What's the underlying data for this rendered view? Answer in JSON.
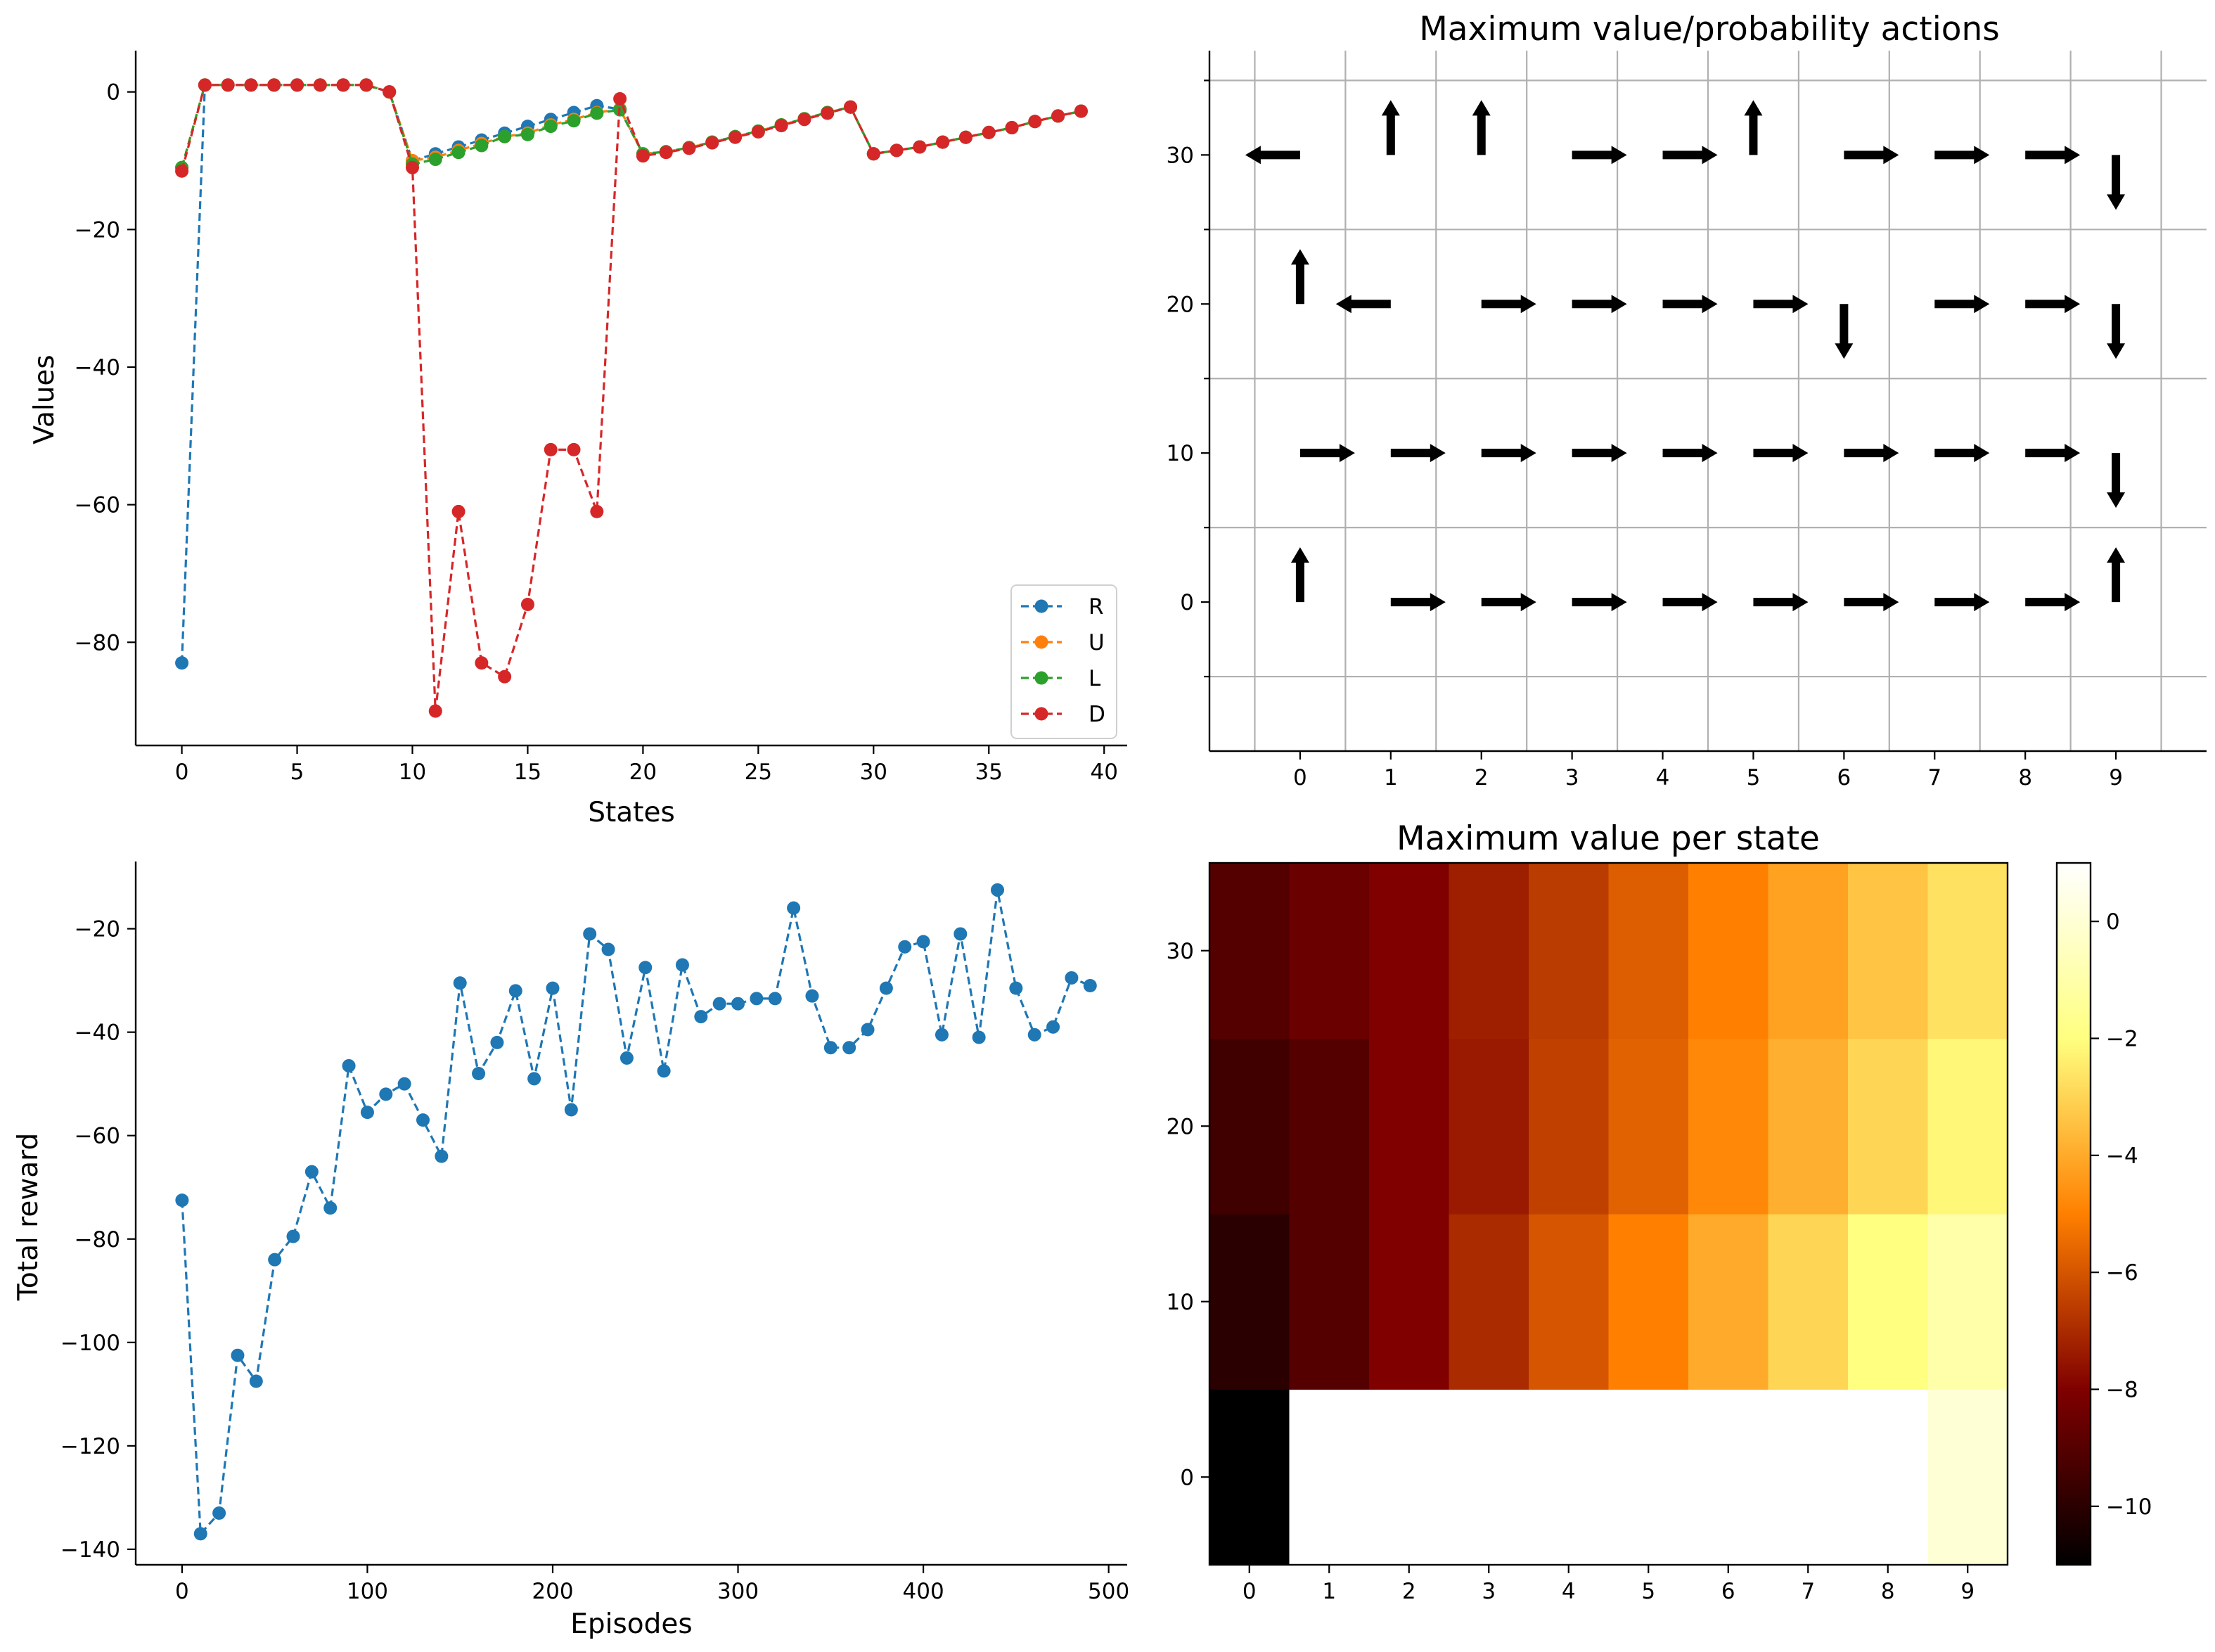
{
  "colors": {
    "R": "#1f77b4",
    "U": "#ff7f0e",
    "L": "#2ca02c",
    "D": "#d62728",
    "reward": "#1f77b4"
  },
  "chart_data": [
    {
      "id": "values",
      "type": "line",
      "title": "",
      "xlabel": "States",
      "ylabel": "Values",
      "xlim": [
        -2,
        41
      ],
      "ylim": [
        -95,
        6
      ],
      "xticks": [
        0,
        5,
        10,
        15,
        20,
        25,
        30,
        35,
        40
      ],
      "yticks": [
        0,
        -20,
        -40,
        -60,
        -80
      ],
      "ytick_labels": [
        "0",
        "−20",
        "−40",
        "−60",
        "−80"
      ],
      "legend_position": "lower-right",
      "x": [
        0,
        1,
        2,
        3,
        4,
        5,
        6,
        7,
        8,
        9,
        10,
        11,
        12,
        13,
        14,
        15,
        16,
        17,
        18,
        19,
        20,
        21,
        22,
        23,
        24,
        25,
        26,
        27,
        28,
        29,
        30,
        31,
        32,
        33,
        34,
        35,
        36,
        37,
        38,
        39
      ],
      "series": [
        {
          "name": "R",
          "values": [
            -83,
            1,
            1,
            1,
            1,
            1,
            1,
            1,
            1,
            0,
            -10,
            -9,
            -8,
            -7,
            -6,
            -5,
            -4,
            -3,
            -2,
            -2.5,
            -9,
            -8.7,
            -8.1,
            -7.3,
            -6.5,
            -5.7,
            -4.8,
            -3.9,
            -3,
            -2.2,
            -9,
            -8.5,
            -8,
            -7.3,
            -6.6,
            -5.9,
            -5.2,
            -4.3,
            -3.5,
            -2.8
          ]
        },
        {
          "name": "U",
          "values": [
            -11,
            1,
            1,
            1,
            1,
            1,
            1,
            1,
            1,
            0,
            -10,
            -9.5,
            -8.5,
            -7.5,
            -6.5,
            -6,
            -4.8,
            -4,
            -3,
            -2.5,
            -9,
            -8.7,
            -8.1,
            -7.3,
            -6.5,
            -5.7,
            -4.8,
            -3.9,
            -3,
            -2.2,
            -9,
            -8.5,
            -8,
            -7.3,
            -6.6,
            -5.9,
            -5.2,
            -4.3,
            -3.5,
            -2.8
          ]
        },
        {
          "name": "L",
          "values": [
            -11,
            1,
            1,
            1,
            1,
            1,
            1,
            1,
            1,
            0,
            -10.5,
            -9.8,
            -8.8,
            -7.8,
            -6.5,
            -6.2,
            -5,
            -4.2,
            -3.1,
            -2.6,
            -9,
            -8.7,
            -8.1,
            -7.3,
            -6.5,
            -5.7,
            -4.8,
            -3.9,
            -3,
            -2.2,
            -9,
            -8.5,
            -8,
            -7.3,
            -6.6,
            -5.9,
            -5.2,
            -4.3,
            -3.5,
            -2.8
          ]
        },
        {
          "name": "D",
          "values": [
            -11.5,
            1,
            1,
            1,
            1,
            1,
            1,
            1,
            1,
            0,
            -11,
            -90,
            -61,
            -83,
            -85,
            -74.5,
            -52,
            -52,
            -61,
            -1,
            -9.3,
            -8.8,
            -8.2,
            -7.4,
            -6.6,
            -5.8,
            -4.9,
            -4,
            -3.1,
            -2.2,
            -9,
            -8.5,
            -8,
            -7.3,
            -6.6,
            -5.9,
            -5.2,
            -4.3,
            -3.5,
            -2.8
          ]
        }
      ]
    },
    {
      "id": "policy",
      "type": "quiver",
      "title": "Maximum value/probability actions",
      "xlim": [
        -1,
        10
      ],
      "ylim": [
        -10,
        37
      ],
      "xticks": [
        0,
        1,
        2,
        3,
        4,
        5,
        6,
        7,
        8,
        9
      ],
      "yticks": [
        0,
        10,
        20,
        30
      ],
      "grid_x": [
        -0.5,
        0.5,
        1.5,
        2.5,
        3.5,
        4.5,
        5.5,
        6.5,
        7.5,
        8.5,
        9.5
      ],
      "grid_y": [
        -5,
        5,
        15,
        25,
        35
      ],
      "rows": [
        {
          "y": 0,
          "actions": [
            "U",
            "",
            "R",
            "R",
            "R",
            "R",
            "R",
            "R",
            "R",
            "R",
            "U"
          ]
        },
        {
          "y": 10,
          "actions": [
            "R",
            "R",
            "R",
            "R",
            "R",
            "R",
            "R",
            "R",
            "R",
            "D"
          ]
        },
        {
          "y": 20,
          "actions": [
            "U",
            "L",
            "",
            "R",
            "R",
            "R",
            "R",
            "D",
            "",
            "R",
            "R",
            "D"
          ]
        },
        {
          "y": 30,
          "actions": [
            "L",
            "U",
            "U",
            "",
            "R",
            "R",
            "U",
            "",
            "R",
            "R",
            "R",
            "D"
          ]
        }
      ],
      "arrows": [
        {
          "x": 0,
          "y": 0,
          "dir": "U"
        },
        {
          "x": 1,
          "y": 0,
          "dir": "R"
        },
        {
          "x": 2,
          "y": 0,
          "dir": "R"
        },
        {
          "x": 3,
          "y": 0,
          "dir": "R"
        },
        {
          "x": 4,
          "y": 0,
          "dir": "R"
        },
        {
          "x": 5,
          "y": 0,
          "dir": "R"
        },
        {
          "x": 6,
          "y": 0,
          "dir": "R"
        },
        {
          "x": 7,
          "y": 0,
          "dir": "R"
        },
        {
          "x": 8,
          "y": 0,
          "dir": "R"
        },
        {
          "x": 9,
          "y": 0,
          "dir": "U"
        },
        {
          "x": 0,
          "y": 10,
          "dir": "R"
        },
        {
          "x": 1,
          "y": 10,
          "dir": "R"
        },
        {
          "x": 2,
          "y": 10,
          "dir": "R"
        },
        {
          "x": 3,
          "y": 10,
          "dir": "R"
        },
        {
          "x": 4,
          "y": 10,
          "dir": "R"
        },
        {
          "x": 5,
          "y": 10,
          "dir": "R"
        },
        {
          "x": 6,
          "y": 10,
          "dir": "R"
        },
        {
          "x": 7,
          "y": 10,
          "dir": "R"
        },
        {
          "x": 8,
          "y": 10,
          "dir": "R"
        },
        {
          "x": 9,
          "y": 10,
          "dir": "D"
        },
        {
          "x": 0,
          "y": 20,
          "dir": "U"
        },
        {
          "x": 1,
          "y": 20,
          "dir": "L"
        },
        {
          "x": 2,
          "y": 20,
          "dir": "R"
        },
        {
          "x": 3,
          "y": 20,
          "dir": "R"
        },
        {
          "x": 4,
          "y": 20,
          "dir": "R"
        },
        {
          "x": 5,
          "y": 20,
          "dir": "R"
        },
        {
          "x": 6,
          "y": 20,
          "dir": "D"
        },
        {
          "x": 7,
          "y": 20,
          "dir": "R"
        },
        {
          "x": 8,
          "y": 20,
          "dir": "R"
        },
        {
          "x": 9,
          "y": 20,
          "dir": "D"
        },
        {
          "x": 0,
          "y": 30,
          "dir": "L"
        },
        {
          "x": 1,
          "y": 30,
          "dir": "U"
        },
        {
          "x": 2,
          "y": 30,
          "dir": "U"
        },
        {
          "x": 3,
          "y": 30,
          "dir": "R"
        },
        {
          "x": 4,
          "y": 30,
          "dir": "R"
        },
        {
          "x": 5,
          "y": 30,
          "dir": "U"
        },
        {
          "x": 6,
          "y": 30,
          "dir": "R"
        },
        {
          "x": 7,
          "y": 30,
          "dir": "R"
        },
        {
          "x": 8,
          "y": 30,
          "dir": "R"
        },
        {
          "x": 9,
          "y": 30,
          "dir": "D"
        }
      ]
    },
    {
      "id": "reward",
      "type": "line",
      "title": "",
      "xlabel": "Episodes",
      "ylabel": "Total reward",
      "xlim": [
        -25,
        510
      ],
      "ylim": [
        -143,
        -7
      ],
      "xticks": [
        0,
        100,
        200,
        300,
        400,
        500
      ],
      "yticks": [
        -20,
        -40,
        -60,
        -80,
        -100,
        -120,
        -140
      ],
      "ytick_labels": [
        "−20",
        "−40",
        "−60",
        "−80",
        "−100",
        "−120",
        "−140"
      ],
      "x": [
        0,
        10,
        20,
        30,
        40,
        50,
        60,
        70,
        80,
        90,
        100,
        110,
        120,
        130,
        140,
        150,
        160,
        170,
        180,
        190,
        200,
        210,
        220,
        230,
        240,
        250,
        260,
        270,
        280,
        290,
        300,
        310,
        320,
        330,
        340,
        350,
        360,
        370,
        380,
        390,
        400,
        410,
        420,
        430,
        440,
        450,
        460,
        470,
        480,
        490
      ],
      "series": [
        {
          "name": "Total reward",
          "values": [
            -72.5,
            -137,
            -133,
            -102.5,
            -107.5,
            -84,
            -79.5,
            -67,
            -74,
            -46.5,
            -55.5,
            -52,
            -50,
            -57,
            -64,
            -30.5,
            -48,
            -42,
            -32,
            -49,
            -31.5,
            -55,
            -21,
            -24,
            -45,
            -27.5,
            -47.5,
            -27,
            -37,
            -34.5,
            -34.5,
            -33.5,
            -33.5,
            -16,
            -33,
            -43,
            -43,
            -39.5,
            -31.5,
            -23.5,
            -22.5,
            -40.5,
            -21,
            -41,
            -12.5,
            -31.5,
            -40.5,
            -39,
            -29.5,
            -31
          ]
        }
      ]
    },
    {
      "id": "heatmap",
      "type": "heatmap",
      "title": "Maximum value per state",
      "xticks": [
        0,
        1,
        2,
        3,
        4,
        5,
        6,
        7,
        8,
        9
      ],
      "yticks": [
        0,
        10,
        20,
        30
      ],
      "colorbar": {
        "min": -11,
        "max": 1,
        "ticks": [
          0,
          -2,
          -4,
          -6,
          -8,
          -10
        ],
        "tick_labels": [
          "0",
          "−2",
          "−4",
          "−6",
          "−8",
          "−10"
        ]
      },
      "rows_bottom_to_top": [
        [
          -11,
          1,
          1,
          1,
          1,
          1,
          1,
          1,
          1,
          0
        ],
        [
          -10,
          -9,
          -8,
          -7,
          -6,
          -5,
          -4,
          -3,
          -2,
          -1
        ],
        [
          -9.5,
          -9,
          -8,
          -7.4,
          -6.5,
          -5.7,
          -4.8,
          -3.9,
          -3,
          -2.2
        ],
        [
          -9,
          -8.5,
          -8,
          -7.3,
          -6.6,
          -5.8,
          -5,
          -4.2,
          -3.4,
          -2.7
        ]
      ]
    }
  ]
}
